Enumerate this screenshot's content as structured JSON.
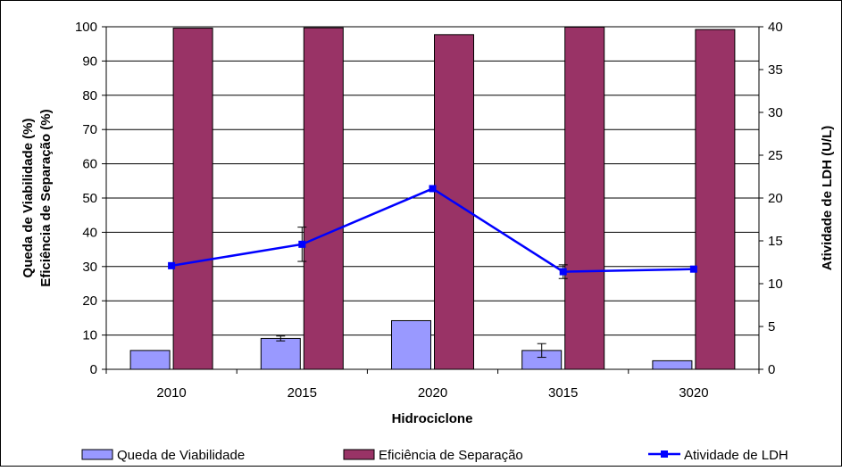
{
  "chart_data": {
    "type": "bar",
    "categories": [
      "2010",
      "2015",
      "2020",
      "3015",
      "3020"
    ],
    "xlabel": "Hidrociclone",
    "ylabel_left": [
      "Queda de Viabilidade (%)",
      "Eficiência de Separação (%)"
    ],
    "ylabel_right": "Atividade de LDH (U/L)",
    "ylim_left": [
      0,
      100
    ],
    "ylim_right": [
      0,
      40
    ],
    "yticks_left": [
      0,
      10,
      20,
      30,
      40,
      50,
      60,
      70,
      80,
      90,
      100
    ],
    "yticks_right": [
      0,
      5,
      10,
      15,
      20,
      25,
      30,
      35,
      40
    ],
    "grid": "horizontal major gridlines (left axis)",
    "legend_position": "bottom",
    "series": [
      {
        "name": "Queda de Viabilidade",
        "kind": "bar",
        "axis": "left",
        "color": "#9999ff",
        "values": [
          5.5,
          9.0,
          14.2,
          5.5,
          2.5
        ],
        "error": [
          null,
          0.7,
          null,
          2.0,
          null
        ]
      },
      {
        "name": "Eficiência de Separação",
        "kind": "bar",
        "axis": "left",
        "color": "#993366",
        "values": [
          99.6,
          99.7,
          97.7,
          99.9,
          99.2
        ],
        "error": [
          null,
          null,
          null,
          null,
          null
        ]
      },
      {
        "name": "Atividade de LDH",
        "kind": "line",
        "axis": "right",
        "color": "#0000ff",
        "values": [
          12.1,
          14.6,
          21.1,
          11.4,
          11.7
        ],
        "error": [
          null,
          2.0,
          null,
          0.8,
          null
        ]
      }
    ]
  }
}
